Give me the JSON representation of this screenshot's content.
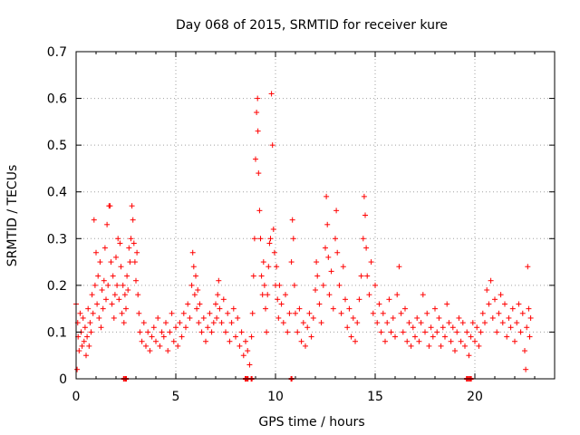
{
  "chart_data": {
    "type": "scatter",
    "title": "Day 068 of 2015, SRMTID for receiver kure",
    "xlabel": "GPS time / hours",
    "ylabel": "SRMTID / TECUs",
    "xlim": [
      0,
      24
    ],
    "ylim": [
      0,
      0.7
    ],
    "x_ticks": [
      0,
      5,
      10,
      15,
      20
    ],
    "y_ticks": [
      0,
      0.1,
      0.2,
      0.3,
      0.4,
      0.5,
      0.6,
      0.7
    ],
    "x_tick_labels": [
      "0",
      "5",
      "10",
      "15",
      "20"
    ],
    "y_tick_labels": [
      "0",
      "0.1",
      "0.2",
      "0.3",
      "0.4",
      "0.5",
      "0.6",
      "0.7"
    ],
    "grid": true,
    "marker": "+",
    "series_color": "#ff0000",
    "series": [
      {
        "name": "SRMTID",
        "points": [
          [
            0.0,
            0.16
          ],
          [
            0.05,
            0.02
          ],
          [
            0.08,
            0.12
          ],
          [
            0.1,
            0.09
          ],
          [
            0.15,
            0.06
          ],
          [
            0.2,
            0.14
          ],
          [
            0.25,
            0.1
          ],
          [
            0.3,
            0.07
          ],
          [
            0.35,
            0.13
          ],
          [
            0.4,
            0.08
          ],
          [
            0.45,
            0.11
          ],
          [
            0.5,
            0.05
          ],
          [
            0.55,
            0.09
          ],
          [
            0.6,
            0.15
          ],
          [
            0.65,
            0.07
          ],
          [
            0.7,
            0.12
          ],
          [
            0.75,
            0.1
          ],
          [
            0.8,
            0.18
          ],
          [
            0.85,
            0.14
          ],
          [
            0.9,
            0.34
          ],
          [
            0.95,
            0.2
          ],
          [
            1.0,
            0.27
          ],
          [
            1.05,
            0.16
          ],
          [
            1.1,
            0.22
          ],
          [
            1.15,
            0.13
          ],
          [
            1.2,
            0.25
          ],
          [
            1.25,
            0.11
          ],
          [
            1.3,
            0.19
          ],
          [
            1.35,
            0.15
          ],
          [
            1.4,
            0.21
          ],
          [
            1.45,
            0.28
          ],
          [
            1.5,
            0.17
          ],
          [
            1.55,
            0.33
          ],
          [
            1.6,
            0.2
          ],
          [
            1.65,
            0.37
          ],
          [
            1.7,
            0.37
          ],
          [
            1.75,
            0.25
          ],
          [
            1.8,
            0.16
          ],
          [
            1.85,
            0.22
          ],
          [
            1.9,
            0.13
          ],
          [
            1.95,
            0.18
          ],
          [
            2.0,
            0.26
          ],
          [
            2.05,
            0.2
          ],
          [
            2.1,
            0.3
          ],
          [
            2.15,
            0.17
          ],
          [
            2.2,
            0.29
          ],
          [
            2.25,
            0.24
          ],
          [
            2.3,
            0.14
          ],
          [
            2.35,
            0.2
          ],
          [
            2.4,
            0.12
          ],
          [
            2.45,
            0.18
          ],
          [
            2.5,
            0.15
          ],
          [
            2.55,
            0.22
          ],
          [
            2.6,
            0.19
          ],
          [
            2.65,
            0.28
          ],
          [
            2.7,
            0.25
          ],
          [
            2.75,
            0.3
          ],
          [
            2.8,
            0.37
          ],
          [
            2.85,
            0.34
          ],
          [
            2.9,
            0.29
          ],
          [
            2.95,
            0.25
          ],
          [
            3.0,
            0.21
          ],
          [
            3.05,
            0.27
          ],
          [
            3.1,
            0.18
          ],
          [
            3.15,
            0.14
          ],
          [
            3.2,
            0.1
          ],
          [
            3.3,
            0.08
          ],
          [
            3.4,
            0.12
          ],
          [
            3.5,
            0.07
          ],
          [
            3.6,
            0.1
          ],
          [
            3.7,
            0.06
          ],
          [
            3.8,
            0.09
          ],
          [
            3.9,
            0.11
          ],
          [
            4.0,
            0.08
          ],
          [
            4.1,
            0.13
          ],
          [
            4.2,
            0.07
          ],
          [
            4.3,
            0.1
          ],
          [
            4.4,
            0.09
          ],
          [
            4.5,
            0.12
          ],
          [
            4.6,
            0.06
          ],
          [
            4.7,
            0.1
          ],
          [
            4.8,
            0.14
          ],
          [
            4.9,
            0.08
          ],
          [
            5.0,
            0.11
          ],
          [
            5.1,
            0.07
          ],
          [
            5.2,
            0.12
          ],
          [
            5.3,
            0.09
          ],
          [
            5.4,
            0.14
          ],
          [
            5.5,
            0.11
          ],
          [
            5.6,
            0.16
          ],
          [
            5.7,
            0.13
          ],
          [
            5.8,
            0.2
          ],
          [
            5.85,
            0.27
          ],
          [
            5.9,
            0.24
          ],
          [
            5.95,
            0.18
          ],
          [
            6.0,
            0.22
          ],
          [
            6.05,
            0.15
          ],
          [
            6.1,
            0.19
          ],
          [
            6.15,
            0.12
          ],
          [
            6.2,
            0.16
          ],
          [
            6.3,
            0.1
          ],
          [
            6.4,
            0.13
          ],
          [
            6.5,
            0.08
          ],
          [
            6.6,
            0.11
          ],
          [
            6.7,
            0.14
          ],
          [
            6.8,
            0.1
          ],
          [
            6.9,
            0.12
          ],
          [
            7.0,
            0.16
          ],
          [
            7.05,
            0.13
          ],
          [
            7.1,
            0.18
          ],
          [
            7.15,
            0.21
          ],
          [
            7.2,
            0.15
          ],
          [
            7.3,
            0.12
          ],
          [
            7.4,
            0.17
          ],
          [
            7.5,
            0.1
          ],
          [
            7.6,
            0.14
          ],
          [
            7.7,
            0.08
          ],
          [
            7.8,
            0.12
          ],
          [
            7.9,
            0.15
          ],
          [
            8.0,
            0.09
          ],
          [
            8.1,
            0.13
          ],
          [
            8.2,
            0.07
          ],
          [
            8.3,
            0.1
          ],
          [
            8.4,
            0.05
          ],
          [
            8.5,
            0.08
          ],
          [
            8.6,
            0.06
          ],
          [
            8.7,
            0.03
          ],
          [
            8.8,
            0.09
          ],
          [
            8.85,
            0.14
          ],
          [
            8.9,
            0.22
          ],
          [
            8.95,
            0.3
          ],
          [
            9.0,
            0.47
          ],
          [
            9.05,
            0.57
          ],
          [
            9.1,
            0.6
          ],
          [
            9.12,
            0.53
          ],
          [
            9.15,
            0.44
          ],
          [
            9.2,
            0.36
          ],
          [
            9.25,
            0.3
          ],
          [
            9.3,
            0.22
          ],
          [
            9.35,
            0.18
          ],
          [
            9.4,
            0.25
          ],
          [
            9.45,
            0.2
          ],
          [
            9.5,
            0.15
          ],
          [
            9.55,
            0.1
          ],
          [
            9.6,
            0.18
          ],
          [
            9.65,
            0.24
          ],
          [
            9.7,
            0.29
          ],
          [
            9.75,
            0.3
          ],
          [
            9.8,
            0.61
          ],
          [
            9.85,
            0.5
          ],
          [
            9.9,
            0.32
          ],
          [
            9.95,
            0.27
          ],
          [
            10.0,
            0.2
          ],
          [
            10.05,
            0.24
          ],
          [
            10.1,
            0.17
          ],
          [
            10.15,
            0.13
          ],
          [
            10.2,
            0.2
          ],
          [
            10.3,
            0.16
          ],
          [
            10.4,
            0.12
          ],
          [
            10.5,
            0.18
          ],
          [
            10.6,
            0.1
          ],
          [
            10.7,
            0.14
          ],
          [
            10.8,
            0.25
          ],
          [
            10.85,
            0.34
          ],
          [
            10.9,
            0.3
          ],
          [
            10.95,
            0.2
          ],
          [
            11.0,
            0.14
          ],
          [
            11.1,
            0.1
          ],
          [
            11.2,
            0.15
          ],
          [
            11.3,
            0.08
          ],
          [
            11.4,
            0.12
          ],
          [
            11.5,
            0.07
          ],
          [
            11.6,
            0.11
          ],
          [
            11.7,
            0.14
          ],
          [
            11.8,
            0.09
          ],
          [
            11.9,
            0.13
          ],
          [
            12.0,
            0.19
          ],
          [
            12.05,
            0.25
          ],
          [
            12.1,
            0.22
          ],
          [
            12.2,
            0.16
          ],
          [
            12.3,
            0.12
          ],
          [
            12.4,
            0.2
          ],
          [
            12.5,
            0.28
          ],
          [
            12.55,
            0.39
          ],
          [
            12.6,
            0.33
          ],
          [
            12.65,
            0.26
          ],
          [
            12.7,
            0.18
          ],
          [
            12.8,
            0.23
          ],
          [
            12.9,
            0.15
          ],
          [
            13.0,
            0.3
          ],
          [
            13.05,
            0.36
          ],
          [
            13.1,
            0.27
          ],
          [
            13.2,
            0.2
          ],
          [
            13.3,
            0.14
          ],
          [
            13.4,
            0.24
          ],
          [
            13.5,
            0.17
          ],
          [
            13.6,
            0.11
          ],
          [
            13.7,
            0.15
          ],
          [
            13.8,
            0.09
          ],
          [
            13.9,
            0.13
          ],
          [
            14.0,
            0.08
          ],
          [
            14.1,
            0.12
          ],
          [
            14.2,
            0.17
          ],
          [
            14.3,
            0.22
          ],
          [
            14.4,
            0.3
          ],
          [
            14.45,
            0.39
          ],
          [
            14.5,
            0.35
          ],
          [
            14.55,
            0.28
          ],
          [
            14.6,
            0.22
          ],
          [
            14.7,
            0.18
          ],
          [
            14.8,
            0.25
          ],
          [
            14.9,
            0.14
          ],
          [
            15.0,
            0.2
          ],
          [
            15.1,
            0.12
          ],
          [
            15.2,
            0.16
          ],
          [
            15.3,
            0.1
          ],
          [
            15.4,
            0.14
          ],
          [
            15.5,
            0.08
          ],
          [
            15.6,
            0.12
          ],
          [
            15.7,
            0.17
          ],
          [
            15.8,
            0.1
          ],
          [
            15.9,
            0.13
          ],
          [
            16.0,
            0.09
          ],
          [
            16.1,
            0.18
          ],
          [
            16.2,
            0.24
          ],
          [
            16.3,
            0.14
          ],
          [
            16.4,
            0.1
          ],
          [
            16.5,
            0.15
          ],
          [
            16.6,
            0.08
          ],
          [
            16.7,
            0.12
          ],
          [
            16.8,
            0.07
          ],
          [
            16.9,
            0.11
          ],
          [
            17.0,
            0.09
          ],
          [
            17.1,
            0.13
          ],
          [
            17.2,
            0.08
          ],
          [
            17.3,
            0.12
          ],
          [
            17.4,
            0.18
          ],
          [
            17.5,
            0.1
          ],
          [
            17.6,
            0.14
          ],
          [
            17.7,
            0.07
          ],
          [
            17.8,
            0.11
          ],
          [
            17.9,
            0.09
          ],
          [
            18.0,
            0.15
          ],
          [
            18.1,
            0.1
          ],
          [
            18.2,
            0.13
          ],
          [
            18.3,
            0.07
          ],
          [
            18.4,
            0.11
          ],
          [
            18.5,
            0.09
          ],
          [
            18.6,
            0.16
          ],
          [
            18.7,
            0.12
          ],
          [
            18.8,
            0.08
          ],
          [
            18.9,
            0.11
          ],
          [
            19.0,
            0.06
          ],
          [
            19.1,
            0.1
          ],
          [
            19.2,
            0.13
          ],
          [
            19.3,
            0.08
          ],
          [
            19.4,
            0.12
          ],
          [
            19.5,
            0.07
          ],
          [
            19.6,
            0.1
          ],
          [
            19.7,
            0.05
          ],
          [
            19.8,
            0.09
          ],
          [
            19.9,
            0.12
          ],
          [
            20.0,
            0.08
          ],
          [
            20.1,
            0.11
          ],
          [
            20.2,
            0.07
          ],
          [
            20.3,
            0.1
          ],
          [
            20.4,
            0.14
          ],
          [
            20.5,
            0.12
          ],
          [
            20.6,
            0.19
          ],
          [
            20.7,
            0.16
          ],
          [
            20.8,
            0.21
          ],
          [
            20.9,
            0.13
          ],
          [
            21.0,
            0.17
          ],
          [
            21.1,
            0.1
          ],
          [
            21.2,
            0.14
          ],
          [
            21.3,
            0.18
          ],
          [
            21.4,
            0.12
          ],
          [
            21.5,
            0.16
          ],
          [
            21.6,
            0.09
          ],
          [
            21.7,
            0.13
          ],
          [
            21.8,
            0.11
          ],
          [
            21.9,
            0.15
          ],
          [
            22.0,
            0.08
          ],
          [
            22.1,
            0.12
          ],
          [
            22.2,
            0.16
          ],
          [
            22.3,
            0.1
          ],
          [
            22.4,
            0.14
          ],
          [
            22.5,
            0.06
          ],
          [
            22.55,
            0.02
          ],
          [
            22.6,
            0.11
          ],
          [
            22.65,
            0.24
          ],
          [
            22.7,
            0.15
          ],
          [
            22.75,
            0.09
          ],
          [
            22.8,
            0.13
          ]
        ]
      }
    ],
    "zero_markers_x": [
      2.4,
      2.5,
      8.5,
      8.6,
      8.8,
      10.8,
      19.6,
      19.7,
      19.8
    ]
  }
}
